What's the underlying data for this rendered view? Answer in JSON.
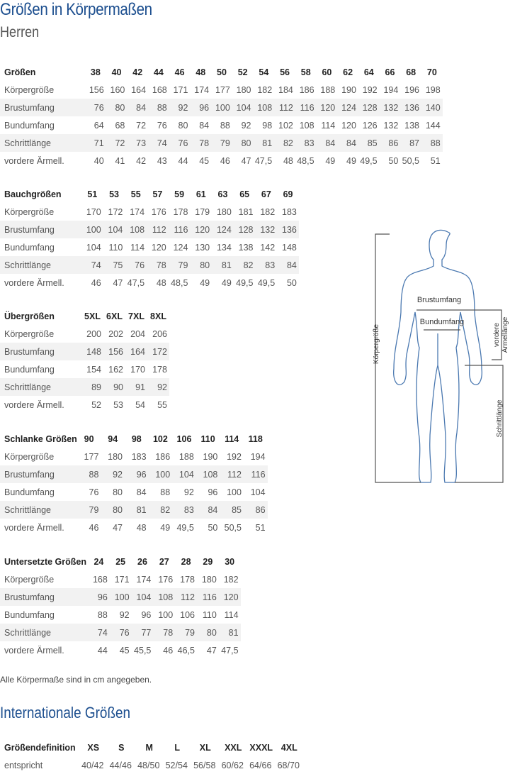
{
  "title": "Größen in Körpermaßen",
  "subtitle": "Herren",
  "tables": [
    {
      "header": "Größen",
      "cols": [
        "38",
        "40",
        "42",
        "44",
        "46",
        "48",
        "50",
        "52",
        "54",
        "56",
        "58",
        "60",
        "62",
        "64",
        "66",
        "68",
        "70"
      ],
      "rows": [
        {
          "label": "Körpergröße",
          "values": [
            "156",
            "160",
            "164",
            "168",
            "171",
            "174",
            "177",
            "180",
            "182",
            "184",
            "186",
            "188",
            "190",
            "192",
            "194",
            "196",
            "198"
          ]
        },
        {
          "label": "Brustumfang",
          "values": [
            "76",
            "80",
            "84",
            "88",
            "92",
            "96",
            "100",
            "104",
            "108",
            "112",
            "116",
            "120",
            "124",
            "128",
            "132",
            "136",
            "140"
          ]
        },
        {
          "label": "Bundumfang",
          "values": [
            "64",
            "68",
            "72",
            "76",
            "80",
            "84",
            "88",
            "92",
            "98",
            "102",
            "108",
            "114",
            "120",
            "126",
            "132",
            "138",
            "144"
          ]
        },
        {
          "label": "Schrittlänge",
          "values": [
            "71",
            "72",
            "73",
            "74",
            "76",
            "78",
            "79",
            "80",
            "81",
            "82",
            "83",
            "84",
            "84",
            "85",
            "86",
            "87",
            "88"
          ]
        },
        {
          "label": "vordere Ärmell.",
          "values": [
            "40",
            "41",
            "42",
            "43",
            "44",
            "45",
            "46",
            "47",
            "47,5",
            "48",
            "48,5",
            "49",
            "49",
            "49,5",
            "50",
            "50,5",
            "51"
          ]
        }
      ]
    },
    {
      "header": "Bauchgrößen",
      "cols": [
        "51",
        "53",
        "55",
        "57",
        "59",
        "61",
        "63",
        "65",
        "67",
        "69"
      ],
      "rows": [
        {
          "label": "Körpergröße",
          "values": [
            "170",
            "172",
            "174",
            "176",
            "178",
            "179",
            "180",
            "181",
            "182",
            "183"
          ]
        },
        {
          "label": "Brustumfang",
          "values": [
            "100",
            "104",
            "108",
            "112",
            "116",
            "120",
            "124",
            "128",
            "132",
            "136"
          ]
        },
        {
          "label": "Bundumfang",
          "values": [
            "104",
            "110",
            "114",
            "120",
            "124",
            "130",
            "134",
            "138",
            "142",
            "148"
          ]
        },
        {
          "label": "Schrittlänge",
          "values": [
            "74",
            "75",
            "76",
            "78",
            "79",
            "80",
            "81",
            "82",
            "83",
            "84"
          ]
        },
        {
          "label": "vordere Ärmell.",
          "values": [
            "46",
            "47",
            "47,5",
            "48",
            "48,5",
            "49",
            "49",
            "49,5",
            "49,5",
            "50"
          ]
        }
      ]
    },
    {
      "header": "Übergrößen",
      "cols": [
        "5XL",
        "6XL",
        "7XL",
        "8XL"
      ],
      "rows": [
        {
          "label": "Körpergröße",
          "values": [
            "200",
            "202",
            "204",
            "206"
          ]
        },
        {
          "label": "Brustumfang",
          "values": [
            "148",
            "156",
            "164",
            "172"
          ]
        },
        {
          "label": "Bundumfang",
          "values": [
            "154",
            "162",
            "170",
            "178"
          ]
        },
        {
          "label": "Schrittlänge",
          "values": [
            "89",
            "90",
            "91",
            "92"
          ]
        },
        {
          "label": "vordere Ärmell.",
          "values": [
            "52",
            "53",
            "54",
            "55"
          ]
        }
      ]
    },
    {
      "header": "Schlanke Größen",
      "cols": [
        "90",
        "94",
        "98",
        "102",
        "106",
        "110",
        "114",
        "118"
      ],
      "rows": [
        {
          "label": "Körpergröße",
          "values": [
            "177",
            "180",
            "183",
            "186",
            "188",
            "190",
            "192",
            "194"
          ]
        },
        {
          "label": "Brustumfang",
          "values": [
            "88",
            "92",
            "96",
            "100",
            "104",
            "108",
            "112",
            "116"
          ]
        },
        {
          "label": "Bundumfang",
          "values": [
            "76",
            "80",
            "84",
            "88",
            "92",
            "96",
            "100",
            "104"
          ]
        },
        {
          "label": "Schrittlänge",
          "values": [
            "79",
            "80",
            "81",
            "82",
            "83",
            "84",
            "85",
            "86"
          ]
        },
        {
          "label": "vordere Ärmell.",
          "values": [
            "46",
            "47",
            "48",
            "49",
            "49,5",
            "50",
            "50,5",
            "51"
          ]
        }
      ]
    },
    {
      "header": "Untersetzte Größen",
      "cols": [
        "24",
        "25",
        "26",
        "27",
        "28",
        "29",
        "30"
      ],
      "rows": [
        {
          "label": "Körpergröße",
          "values": [
            "168",
            "171",
            "174",
            "176",
            "178",
            "180",
            "182"
          ]
        },
        {
          "label": "Brustumfang",
          "values": [
            "96",
            "100",
            "104",
            "108",
            "112",
            "116",
            "120"
          ]
        },
        {
          "label": "Bundumfang",
          "values": [
            "88",
            "92",
            "96",
            "100",
            "106",
            "110",
            "114"
          ]
        },
        {
          "label": "Schrittlänge",
          "values": [
            "74",
            "76",
            "77",
            "78",
            "79",
            "80",
            "81"
          ]
        },
        {
          "label": "vordere Ärmell.",
          "values": [
            "44",
            "45",
            "45,5",
            "46",
            "46,5",
            "47",
            "47,5"
          ]
        }
      ]
    }
  ],
  "note": "Alle Körpermaße sind in cm angegeben.",
  "intl_title": "Internationale Größen",
  "intl": {
    "header": "Größendefinition",
    "cols": [
      "XS",
      "S",
      "M",
      "L",
      "XL",
      "XXL",
      "XXXL",
      "4XL"
    ],
    "rows": [
      {
        "label": "entspricht",
        "values": [
          "40/42",
          "44/46",
          "48/50",
          "52/54",
          "56/58",
          "60/62",
          "64/66",
          "68/70"
        ]
      }
    ]
  },
  "figure": {
    "labels": {
      "chest": "Brustumfang",
      "waist": "Bundumfang",
      "height": "Körpergröße",
      "sleeve_1": "vordere",
      "sleeve_2": "Ärmellänge",
      "inseam": "Schrittlänge"
    },
    "outline_color": "#4a78b0"
  }
}
